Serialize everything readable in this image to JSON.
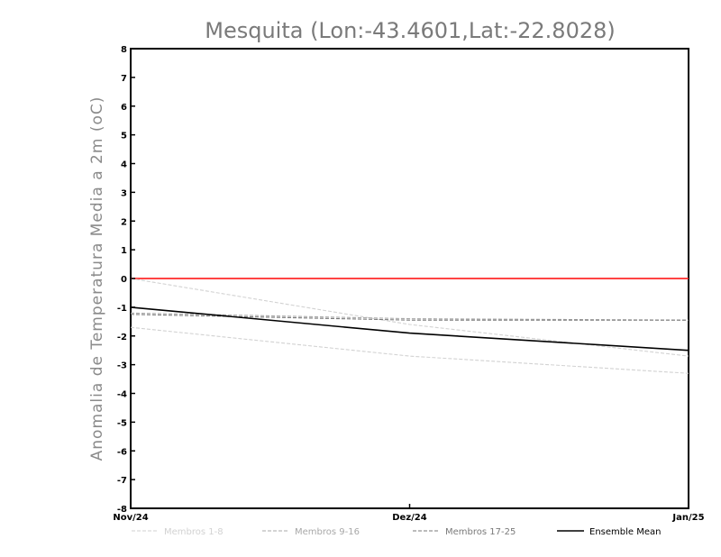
{
  "chart_data": {
    "type": "line",
    "title": "Mesquita (Lon:-43.4601,Lat:-22.8028)",
    "ylabel": "Anomalia de Temperatura Media a 2m (oC)",
    "xlabel": "",
    "categories": [
      "Nov/24",
      "Dez/24",
      "Jan/25"
    ],
    "yticks": [
      8,
      7,
      6,
      5,
      4,
      3,
      2,
      1,
      0,
      -1,
      -2,
      -3,
      -4,
      -5,
      -6,
      -7,
      -8
    ],
    "ylim": [
      -8,
      8
    ],
    "grid": false,
    "legend_position": "bottom",
    "reference_line": {
      "y": 0,
      "color": "#ff2a2a"
    },
    "series": [
      {
        "name": "Membros 1-8",
        "color": "#d2d2d2",
        "dash": "dashed",
        "values": [
          0.0,
          -1.6,
          -2.7
        ]
      },
      {
        "name": "Membros 1-8",
        "color": "#d2d2d2",
        "dash": "dashed",
        "values": [
          -1.7,
          -2.7,
          -3.3
        ]
      },
      {
        "name": "Membros 9-16",
        "color": "#a8a8a8",
        "dash": "dashed",
        "values": [
          -1.2,
          -1.4,
          -1.45
        ]
      },
      {
        "name": "Membros 17-25",
        "color": "#7a7a7a",
        "dash": "dashed",
        "values": [
          -1.25,
          -1.45,
          -1.45
        ]
      },
      {
        "name": "Ensemble Mean",
        "color": "#000000",
        "dash": "solid",
        "values": [
          -1.0,
          -1.9,
          -2.5
        ]
      }
    ],
    "legend": [
      {
        "label": "Membros 1-8",
        "color": "#d2d2d2",
        "dash": "dashed"
      },
      {
        "label": "Membros 9-16",
        "color": "#a8a8a8",
        "dash": "dashed"
      },
      {
        "label": "Membros 17-25",
        "color": "#7a7a7a",
        "dash": "dashed"
      },
      {
        "label": "Ensemble Mean",
        "color": "#000000",
        "dash": "solid"
      }
    ]
  }
}
